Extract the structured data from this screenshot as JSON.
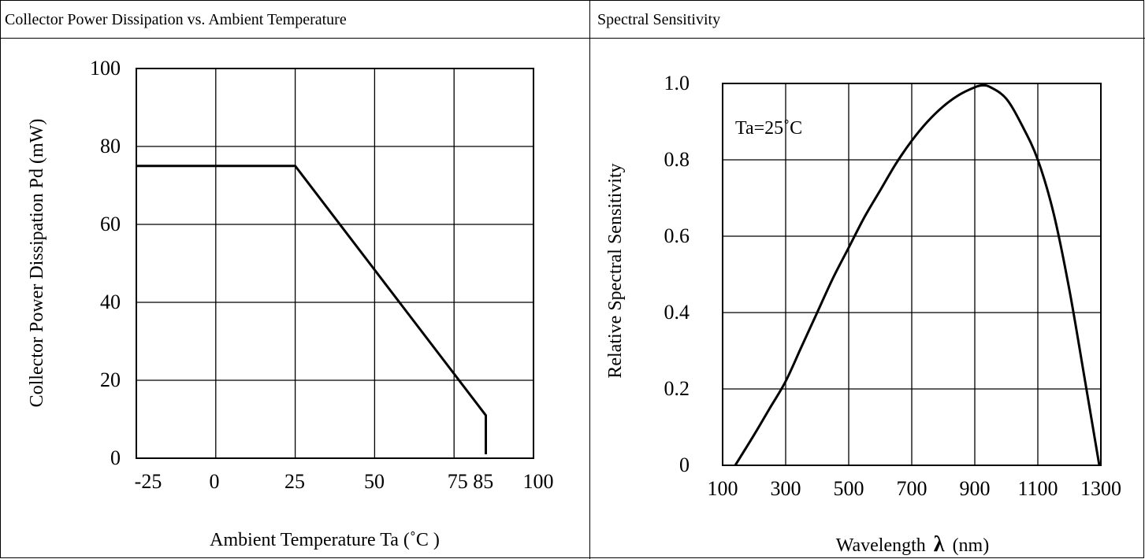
{
  "panels": {
    "left_title": "Collector Power Dissipation vs. Ambient Temperature",
    "right_title": "Spectral Sensitivity"
  },
  "chart_data": [
    {
      "type": "line",
      "xlabel": "Ambient Temperature Ta (˚C   )",
      "ylabel": "Collector Power Dissipation Pd (mW)",
      "xlim": [
        -25,
        100
      ],
      "ylim": [
        0,
        100
      ],
      "x_ticks": [
        -25,
        0,
        25,
        50,
        75,
        100
      ],
      "x_tick_labels": [
        "-25",
        "0",
        "25",
        "50",
        "75 85",
        "100"
      ],
      "y_ticks": [
        0,
        20,
        40,
        60,
        80,
        100
      ],
      "y_tick_labels": [
        "0",
        "20",
        "40",
        "60",
        "80",
        "100"
      ],
      "grid": true,
      "series": [
        {
          "x": [
            -25,
            25,
            85,
            85
          ],
          "y": [
            75,
            75,
            11,
            1
          ]
        }
      ]
    },
    {
      "type": "line",
      "xlabel": "Wavelength",
      "xlabel_symbol": "λ",
      "xlabel_unit": "(nm)",
      "ylabel": "Relative Spectral Sensitivity",
      "annotation": "Ta=25˚C",
      "xlim": [
        100,
        1300
      ],
      "ylim": [
        0,
        1.0
      ],
      "x_ticks": [
        100,
        300,
        500,
        700,
        900,
        1100,
        1300
      ],
      "x_tick_labels": [
        "100",
        "300",
        "500",
        "700",
        "900",
        "1100",
        "1300"
      ],
      "y_ticks": [
        0,
        0.2,
        0.4,
        0.6,
        0.8,
        1.0
      ],
      "y_tick_labels": [
        "0",
        "0.2",
        "0.4",
        "0.6",
        "0.8",
        "1.0"
      ],
      "grid": true,
      "series": [
        {
          "x": [
            140,
            200,
            250,
            300,
            350,
            400,
            450,
            500,
            550,
            600,
            650,
            700,
            750,
            800,
            850,
            900,
            925,
            950,
            1000,
            1050,
            1100,
            1150,
            1200,
            1250,
            1295
          ],
          "y": [
            0.0,
            0.08,
            0.15,
            0.22,
            0.31,
            0.4,
            0.49,
            0.57,
            0.65,
            0.72,
            0.79,
            0.85,
            0.9,
            0.94,
            0.97,
            0.99,
            0.995,
            0.99,
            0.96,
            0.89,
            0.8,
            0.66,
            0.46,
            0.22,
            0.0
          ]
        }
      ]
    }
  ]
}
